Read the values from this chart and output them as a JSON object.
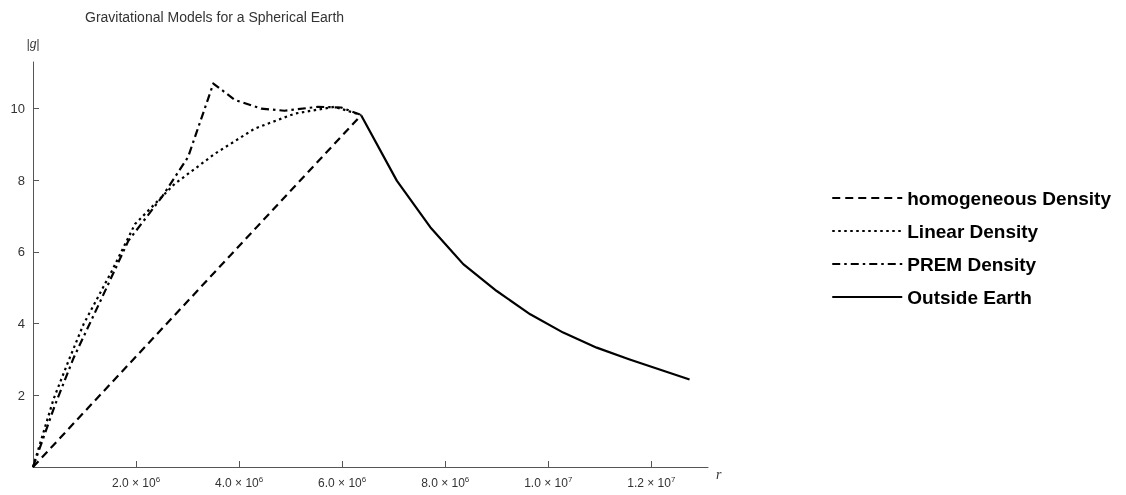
{
  "chart_data": {
    "type": "line",
    "title": "Gravitational Models for a Spherical Earth",
    "xlabel": "r",
    "ylabel": "|g|",
    "series": [
      {
        "name": "homogeneous Density",
        "color": "#000000",
        "line_style": "dashed",
        "x": [
          0,
          6371000
        ],
        "values": [
          0,
          9.82
        ]
      },
      {
        "name": "Linear Density",
        "color": "#000000",
        "line_style": "dotted",
        "x": [
          0,
          400000,
          700000,
          980000,
          1530000,
          1980000,
          2750000,
          3530000,
          4300000,
          5080000,
          5850000,
          6371000
        ],
        "values": [
          0,
          1.9,
          3.0,
          3.98,
          5.47,
          6.78,
          7.9,
          8.74,
          9.44,
          9.86,
          10.05,
          9.82
        ]
      },
      {
        "name": "PREM Density",
        "color": "#000000",
        "line_style": "dashdot",
        "x": [
          0,
          430000,
          790000,
          1340000,
          1850000,
          2500000,
          3010000,
          3500000,
          3920000,
          4430000,
          4880000,
          5530000,
          5980000,
          6371000
        ],
        "values": [
          0,
          1.74,
          3.05,
          4.73,
          6.31,
          7.53,
          8.65,
          10.7,
          10.24,
          10.0,
          9.94,
          10.05,
          10.03,
          9.82
        ]
      },
      {
        "name": "Outside Earth",
        "color": "#000000",
        "line_style": "solid",
        "x": [
          6371000,
          7060000,
          7710000,
          8350000,
          9000000,
          9650000,
          10290000,
          10940000,
          11580000,
          12742000
        ],
        "values": [
          9.81,
          7.99,
          6.69,
          5.66,
          4.91,
          4.26,
          3.75,
          3.33,
          3.0,
          2.44
        ]
      }
    ],
    "xlim": [
      0,
      13100000
    ],
    "ylim": [
      0,
      11.3
    ],
    "xticks": [
      {
        "value": 2000000,
        "label": "2.0 × 10$^{6}$"
      },
      {
        "value": 4000000,
        "label": "4.0 × 10$^{6}$"
      },
      {
        "value": 6000000,
        "label": "6.0 × 10$^{6}$"
      },
      {
        "value": 8000000,
        "label": "8.0 × 10$^{6}$"
      },
      {
        "value": 10000000,
        "label": "1.0 × 10$^{7}$"
      },
      {
        "value": 12000000,
        "label": "1.2 × 10$^{7}$"
      }
    ],
    "yticks": [
      2,
      4,
      6,
      8,
      10
    ],
    "grid": false,
    "legend": "right",
    "marker": "none"
  }
}
